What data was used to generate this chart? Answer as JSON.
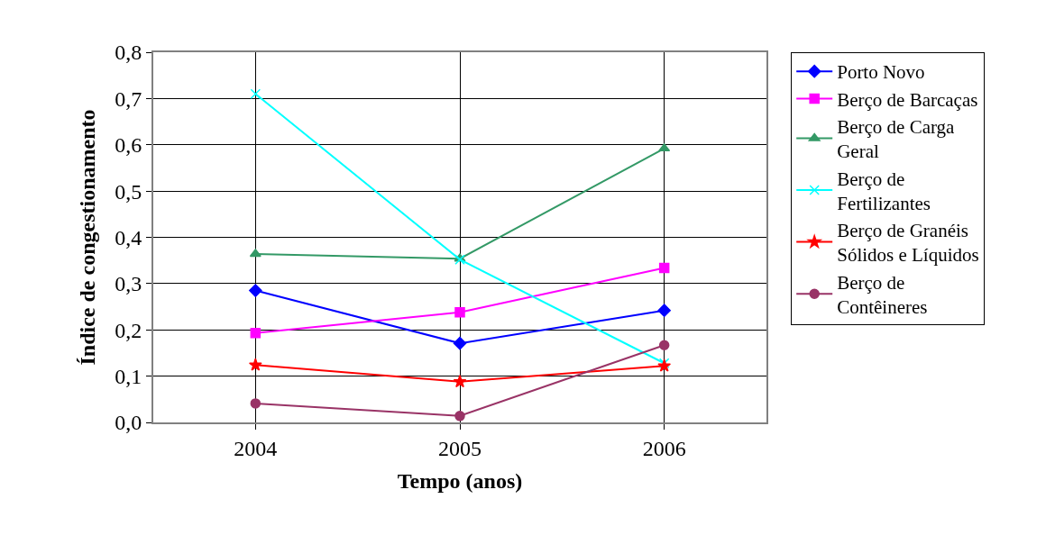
{
  "chart_data": {
    "type": "line",
    "xlabel": "Tempo (anos)",
    "ylabel": "Índice de congestionamento",
    "categories": [
      "2004",
      "2005",
      "2006"
    ],
    "series": [
      {
        "name": "Porto Novo",
        "color": "#0000ff",
        "marker": "diamond",
        "values": [
          0.285,
          0.171,
          0.242
        ]
      },
      {
        "name": "Berço de Barcaças",
        "color": "#ff00ff",
        "marker": "square",
        "values": [
          0.193,
          0.238,
          0.334
        ]
      },
      {
        "name": "Berço de Carga Geral",
        "color": "#339966",
        "marker": "triangle",
        "values": [
          0.364,
          0.354,
          0.592
        ]
      },
      {
        "name": "Berço de Fertilizantes",
        "color": "#00ffff",
        "marker": "cross",
        "values": [
          0.71,
          0.352,
          0.128
        ]
      },
      {
        "name": "Berço de Granéis Sólidos e Líquidos",
        "color": "#ff0000",
        "marker": "star",
        "values": [
          0.124,
          0.088,
          0.122
        ]
      },
      {
        "name": "Berço de Contêineres",
        "color": "#993366",
        "marker": "circle",
        "values": [
          0.041,
          0.014,
          0.167
        ]
      }
    ],
    "ylim": [
      0,
      0.8
    ],
    "yticks": [
      {
        "value": 0,
        "label": "0,0"
      },
      {
        "value": 0.1,
        "label": "0,1"
      },
      {
        "value": 0.2,
        "label": "0,2"
      },
      {
        "value": 0.3,
        "label": "0,3"
      },
      {
        "value": 0.4,
        "label": "0,4"
      },
      {
        "value": 0.5,
        "label": "0,5"
      },
      {
        "value": 0.6,
        "label": "0,6"
      },
      {
        "value": 0.7,
        "label": "0,7"
      },
      {
        "value": 0.8,
        "label": "0,8"
      }
    ],
    "grid": true,
    "legend": "right",
    "line_style": "solid"
  }
}
